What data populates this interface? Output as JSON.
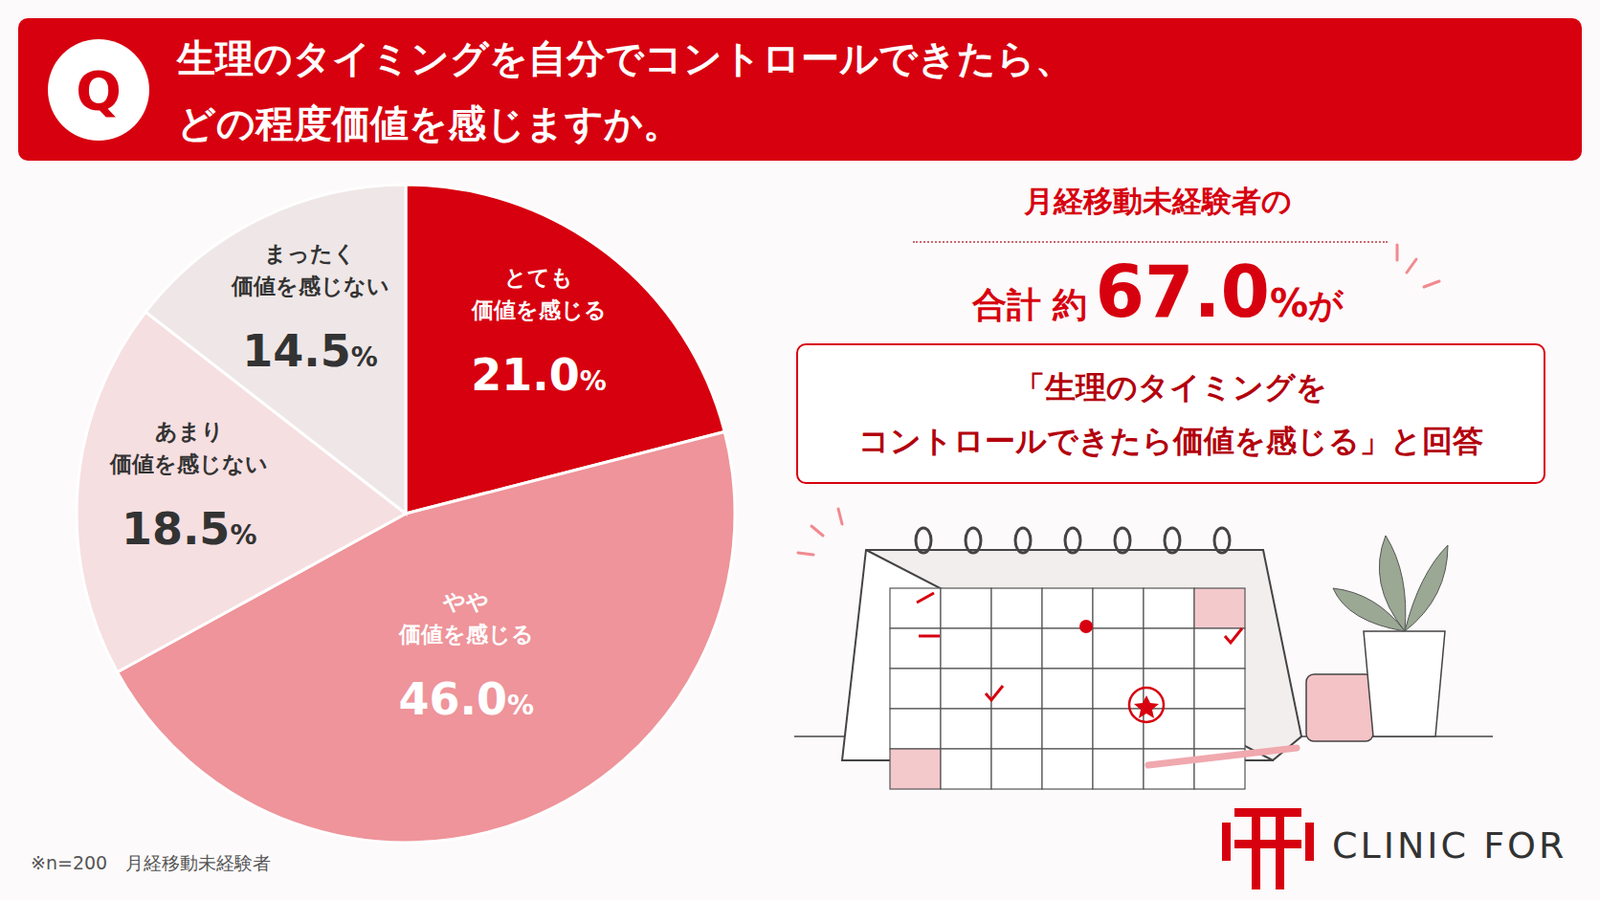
{
  "chart_data": {
    "type": "pie",
    "title": "生理のタイミングを自分でコントロールできたら、\nどの程度価値を感じますか。",
    "categories": [
      "とても\n価値を感じる",
      "やや\n価値を感じる",
      "あまり\n価値を感じない",
      "まったく\n価値を感じない"
    ],
    "values": [
      21.0,
      46.0,
      18.5,
      14.5
    ],
    "value_labels": [
      "21.0%",
      "46.0%",
      "18.5%",
      "14.5%"
    ],
    "colors": [
      "#d7000f",
      "#ee949a",
      "#f6dfe1",
      "#efe7e7"
    ],
    "data_labels": true
  },
  "question_mark": "Q",
  "summary": {
    "heading": "月経移動未経験者の",
    "prefix_1": "合計",
    "prefix_2": "約",
    "total_label": "67.0%",
    "suffix": "が",
    "box": "「生理のタイミングを\nコントロールできたら価値を感じる」と回答"
  },
  "note": "※n=200　月経移動未経験者",
  "logo": "CLINIC FOR"
}
